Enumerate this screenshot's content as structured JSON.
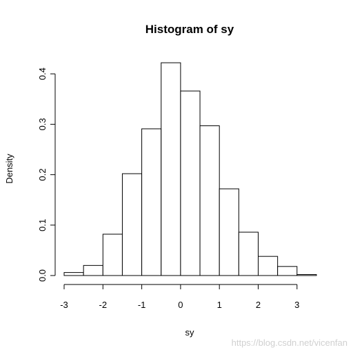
{
  "chart_data": {
    "type": "histogram",
    "title": "Histogram of sy",
    "xlabel": "sy",
    "ylabel": "Density",
    "bins": [
      {
        "from": -3.0,
        "to": -2.5,
        "density": 0.006
      },
      {
        "from": -2.5,
        "to": -2.0,
        "density": 0.02
      },
      {
        "from": -2.0,
        "to": -1.5,
        "density": 0.082
      },
      {
        "from": -1.5,
        "to": -1.0,
        "density": 0.202
      },
      {
        "from": -1.0,
        "to": -0.5,
        "density": 0.291
      },
      {
        "from": -0.5,
        "to": 0.0,
        "density": 0.422
      },
      {
        "from": 0.0,
        "to": 0.5,
        "density": 0.366
      },
      {
        "from": 0.5,
        "to": 1.0,
        "density": 0.297
      },
      {
        "from": 1.0,
        "to": 1.5,
        "density": 0.172
      },
      {
        "from": 1.5,
        "to": 2.0,
        "density": 0.086
      },
      {
        "from": 2.0,
        "to": 2.5,
        "density": 0.038
      },
      {
        "from": 2.5,
        "to": 3.0,
        "density": 0.018
      },
      {
        "from": 3.0,
        "to": 3.5,
        "density": 0.002
      }
    ],
    "xlim": [
      -3.0,
      3.5
    ],
    "ylim": [
      0.0,
      0.422
    ],
    "xticks": [
      -3,
      -2,
      -1,
      0,
      1,
      2,
      3
    ],
    "xtick_labels": [
      "-3",
      "-2",
      "-1",
      "0",
      "1",
      "2",
      "3"
    ],
    "yticks": [
      0.0,
      0.1,
      0.2,
      0.3,
      0.4
    ],
    "ytick_labels": [
      "0.0",
      "0.1",
      "0.2",
      "0.3",
      "0.4"
    ],
    "grid": false,
    "colors": {
      "bar_fill": "#ffffff",
      "bar_stroke": "#000000"
    }
  },
  "watermark": "https://blog.csdn.net/vicenfan"
}
